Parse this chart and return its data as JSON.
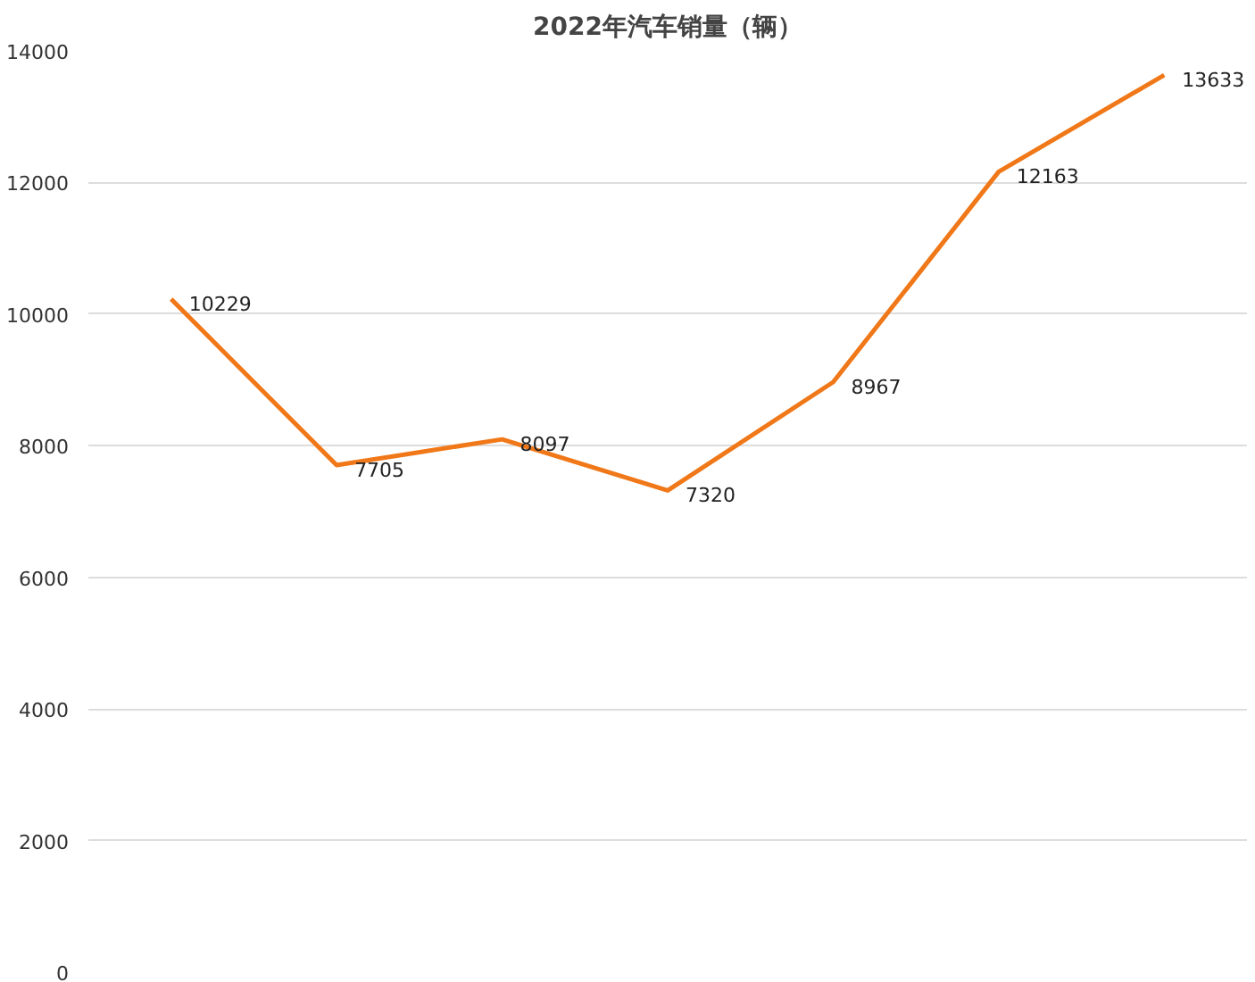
{
  "chart_data": {
    "type": "line",
    "title": "2022年汽车销量（辆）",
    "categories": [
      null,
      null,
      null,
      null,
      null,
      null,
      null
    ],
    "series": [
      {
        "color": "#f07818",
        "values": [
          10229,
          7705,
          8097,
          7320,
          8967,
          12163,
          13633
        ]
      }
    ],
    "ylim": [
      0,
      14000
    ],
    "yticks": [
      0,
      2000,
      4000,
      6000,
      8000,
      10000,
      12000,
      14000
    ],
    "grid": "y",
    "data_labels": true,
    "marker": "none",
    "line_style": "solid"
  }
}
